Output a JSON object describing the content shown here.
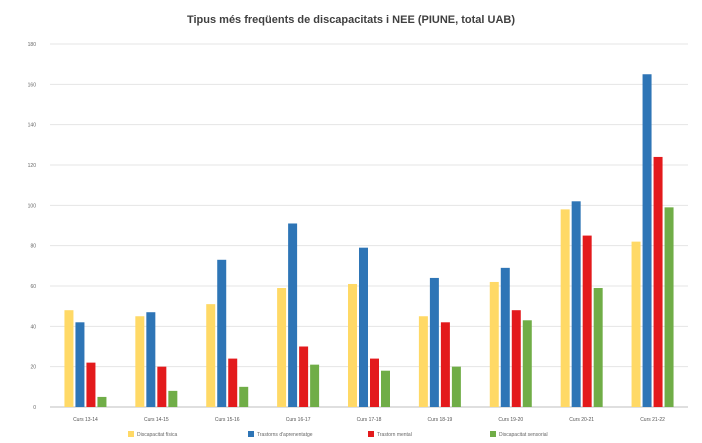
{
  "chart_data": {
    "type": "bar",
    "title": "Tipus més freqüents de discapacitats i NEE (PIUNE, total UAB)",
    "categories": [
      "Curs 13-14",
      "Curs 14-15",
      "Curs 15-16",
      "Curs 16-17",
      "Curs 17-18",
      "Curs 18-19",
      "Curs 19-20",
      "Curs 20-21",
      "Curs 21-22"
    ],
    "series": [
      {
        "name": "Discapacitat física",
        "color": "#FFD966",
        "values": [
          48,
          45,
          51,
          59,
          61,
          45,
          62,
          98,
          82
        ]
      },
      {
        "name": "Trastorns d'aprenentatge",
        "color": "#2E75B6",
        "values": [
          42,
          47,
          73,
          91,
          79,
          64,
          69,
          102,
          165
        ]
      },
      {
        "name": "Trastorn mental",
        "color": "#E31A1C",
        "values": [
          22,
          20,
          24,
          30,
          24,
          42,
          48,
          85,
          124
        ]
      },
      {
        "name": "Discapacitat sensorial",
        "color": "#70AD47",
        "values": [
          5,
          8,
          10,
          21,
          18,
          20,
          43,
          59,
          99
        ]
      }
    ],
    "ylim": [
      0,
      180
    ],
    "yticks": [
      "0",
      "20",
      "40",
      "60",
      "80",
      "100",
      "120",
      "140",
      "160",
      "180"
    ],
    "grid": true,
    "legend_position": "bottom"
  }
}
